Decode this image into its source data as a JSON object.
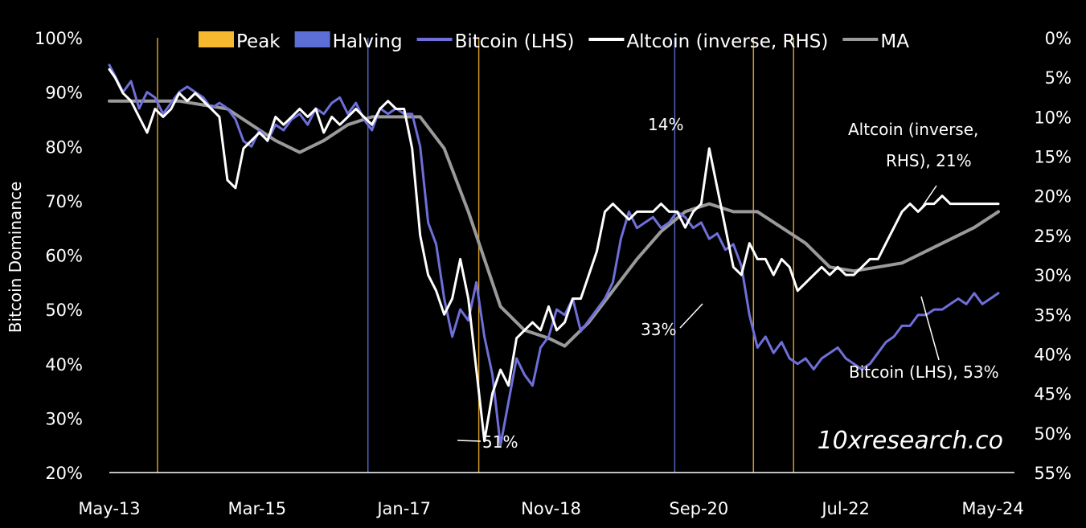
{
  "chart_data": {
    "type": "line",
    "ylabel": "Bitcoin Dominance",
    "watermark": "10xresearch.co",
    "x_ticks": [
      "May-13",
      "Mar-15",
      "Jan-17",
      "Nov-18",
      "Sep-20",
      "Jul-22",
      "May-24"
    ],
    "x_tick_dates": [
      2013.33,
      2015.17,
      2017.0,
      2018.83,
      2020.67,
      2022.5,
      2024.33
    ],
    "xlim": [
      2013.33,
      2024.6
    ],
    "y_left_ticks": [
      "100%",
      "90%",
      "80%",
      "70%",
      "60%",
      "50%",
      "40%",
      "30%",
      "20%"
    ],
    "ylim_left": [
      20,
      100
    ],
    "y_right_ticks": [
      "0%",
      "5%",
      "10%",
      "15%",
      "20%",
      "25%",
      "30%",
      "35%",
      "40%",
      "45%",
      "50%",
      "55%"
    ],
    "ylim_right": [
      0,
      55
    ],
    "legend_position": "top",
    "legend": [
      {
        "label": "Peak",
        "color": "#f5b82e",
        "kind": "box"
      },
      {
        "label": "Halving",
        "color": "#5b6fd6",
        "kind": "box"
      },
      {
        "label": "Bitcoin (LHS)",
        "color": "#6f6fd9",
        "kind": "line"
      },
      {
        "label": "Altcoin (inverse, RHS)",
        "color": "#ffffff",
        "kind": "line"
      },
      {
        "label": "MA",
        "color": "#9a9a9a",
        "kind": "line"
      }
    ],
    "peak_lines": [
      2013.93,
      2017.93,
      2021.35,
      2021.85
    ],
    "halving_lines": [
      2016.55,
      2020.37
    ],
    "series": [
      {
        "name": "Bitcoin (LHS)",
        "color": "#6f6fd9",
        "axis": "left",
        "x": [
          2013.33,
          2013.4,
          2013.5,
          2013.6,
          2013.7,
          2013.8,
          2013.9,
          2014.0,
          2014.1,
          2014.2,
          2014.3,
          2014.4,
          2014.5,
          2014.6,
          2014.7,
          2014.8,
          2014.9,
          2015.0,
          2015.1,
          2015.2,
          2015.3,
          2015.4,
          2015.5,
          2015.6,
          2015.7,
          2015.8,
          2015.9,
          2016.0,
          2016.1,
          2016.2,
          2016.3,
          2016.4,
          2016.5,
          2016.6,
          2016.7,
          2016.8,
          2016.9,
          2017.0,
          2017.1,
          2017.2,
          2017.3,
          2017.4,
          2017.5,
          2017.6,
          2017.7,
          2017.8,
          2017.9,
          2018.0,
          2018.1,
          2018.2,
          2018.3,
          2018.4,
          2018.5,
          2018.6,
          2018.7,
          2018.8,
          2018.9,
          2019.0,
          2019.1,
          2019.2,
          2019.3,
          2019.4,
          2019.5,
          2019.6,
          2019.7,
          2019.8,
          2019.9,
          2020.0,
          2020.1,
          2020.2,
          2020.3,
          2020.4,
          2020.5,
          2020.6,
          2020.7,
          2020.8,
          2020.9,
          2021.0,
          2021.1,
          2021.2,
          2021.3,
          2021.4,
          2021.5,
          2021.6,
          2021.7,
          2021.8,
          2021.9,
          2022.0,
          2022.1,
          2022.2,
          2022.3,
          2022.4,
          2022.5,
          2022.6,
          2022.7,
          2022.8,
          2022.9,
          2023.0,
          2023.1,
          2023.2,
          2023.3,
          2023.4,
          2023.5,
          2023.6,
          2023.7,
          2023.8,
          2023.9,
          2024.0,
          2024.1,
          2024.2,
          2024.3,
          2024.4
        ],
        "values": [
          95,
          93,
          90,
          92,
          87,
          90,
          89,
          86,
          88,
          90,
          91,
          90,
          89,
          87,
          88,
          87,
          85,
          81,
          80,
          83,
          81,
          84,
          83,
          85,
          86,
          84,
          87,
          86,
          88,
          89,
          86,
          88,
          85,
          83,
          87,
          86,
          87,
          86,
          86,
          80,
          66,
          62,
          52,
          45,
          50,
          48,
          55,
          45,
          38,
          25,
          33,
          41,
          38,
          36,
          43,
          45,
          50,
          49,
          52,
          46,
          48,
          50,
          52,
          55,
          63,
          68,
          65,
          66,
          67,
          65,
          66,
          68,
          67,
          65,
          66,
          63,
          64,
          61,
          62,
          58,
          49,
          43,
          45,
          42,
          44,
          41,
          40,
          41,
          39,
          41,
          42,
          43,
          41,
          40,
          39,
          40,
          42,
          44,
          45,
          47,
          47,
          49,
          49,
          50,
          50,
          51,
          52,
          51,
          53,
          51,
          52,
          53
        ]
      },
      {
        "name": "Altcoin (inverse, RHS)",
        "color": "#ffffff",
        "axis": "right",
        "x": [
          2013.33,
          2013.4,
          2013.5,
          2013.6,
          2013.7,
          2013.8,
          2013.9,
          2014.0,
          2014.1,
          2014.2,
          2014.3,
          2014.4,
          2014.5,
          2014.6,
          2014.7,
          2014.8,
          2014.9,
          2015.0,
          2015.1,
          2015.2,
          2015.3,
          2015.4,
          2015.5,
          2015.6,
          2015.7,
          2015.8,
          2015.9,
          2016.0,
          2016.1,
          2016.2,
          2016.3,
          2016.4,
          2016.5,
          2016.6,
          2016.7,
          2016.8,
          2016.9,
          2017.0,
          2017.1,
          2017.2,
          2017.3,
          2017.4,
          2017.5,
          2017.6,
          2017.7,
          2017.8,
          2017.9,
          2018.0,
          2018.1,
          2018.2,
          2018.3,
          2018.4,
          2018.5,
          2018.6,
          2018.7,
          2018.8,
          2018.9,
          2019.0,
          2019.1,
          2019.2,
          2019.3,
          2019.4,
          2019.5,
          2019.6,
          2019.7,
          2019.8,
          2019.9,
          2020.0,
          2020.1,
          2020.2,
          2020.3,
          2020.4,
          2020.5,
          2020.6,
          2020.7,
          2020.8,
          2020.9,
          2021.0,
          2021.1,
          2021.2,
          2021.3,
          2021.4,
          2021.5,
          2021.6,
          2021.7,
          2021.8,
          2021.9,
          2022.0,
          2022.1,
          2022.2,
          2022.3,
          2022.4,
          2022.5,
          2022.6,
          2022.7,
          2022.8,
          2022.9,
          2023.0,
          2023.1,
          2023.2,
          2023.3,
          2023.4,
          2023.5,
          2023.6,
          2023.7,
          2023.8,
          2023.9,
          2024.0,
          2024.1,
          2024.2,
          2024.3,
          2024.4
        ],
        "values": [
          4,
          5,
          7,
          8,
          10,
          12,
          9,
          10,
          9,
          7,
          8,
          7,
          8,
          9,
          10,
          18,
          19,
          14,
          13,
          12,
          13,
          10,
          11,
          10,
          9,
          10,
          9,
          12,
          10,
          11,
          10,
          9,
          10,
          11,
          9,
          8,
          9,
          9,
          14,
          25,
          30,
          32,
          35,
          33,
          28,
          33,
          42,
          51,
          45,
          42,
          44,
          38,
          37,
          36,
          37,
          34,
          37,
          36,
          33,
          33,
          30,
          27,
          22,
          21,
          22,
          23,
          22,
          22,
          22,
          21,
          22,
          22,
          24,
          22,
          21,
          14,
          19,
          24,
          29,
          30,
          26,
          28,
          28,
          30,
          28,
          29,
          32,
          31,
          30,
          29,
          30,
          29,
          30,
          30,
          29,
          28,
          28,
          26,
          24,
          22,
          21,
          22,
          21,
          21,
          20,
          21,
          21,
          21,
          21,
          21,
          21,
          21
        ]
      },
      {
        "name": "MA",
        "color": "#9a9a9a",
        "axis": "right",
        "x": [
          2013.33,
          2013.6,
          2013.9,
          2014.2,
          2014.5,
          2014.8,
          2015.1,
          2015.4,
          2015.7,
          2016.0,
          2016.3,
          2016.6,
          2016.9,
          2017.2,
          2017.5,
          2017.8,
          2018.0,
          2018.2,
          2018.5,
          2018.8,
          2019.0,
          2019.3,
          2019.6,
          2019.9,
          2020.2,
          2020.5,
          2020.8,
          2021.1,
          2021.4,
          2021.7,
          2022.0,
          2022.3,
          2022.6,
          2022.9,
          2023.2,
          2023.5,
          2023.8,
          2024.1,
          2024.4
        ],
        "values": [
          8,
          8,
          8,
          8,
          8.5,
          9,
          11,
          13,
          14.5,
          13,
          11,
          10,
          10,
          10,
          14,
          22,
          28,
          34,
          37,
          38,
          39,
          36,
          32,
          28,
          24.5,
          22,
          21,
          22,
          22,
          24,
          26,
          29,
          29.5,
          29,
          28.5,
          27,
          25.5,
          24,
          22
        ]
      }
    ],
    "annotations": [
      {
        "text": "51%",
        "x": 2017.95,
        "y_left": 25.3
      },
      {
        "text": "14%",
        "x": 2020.85,
        "y_right": 13.8
      },
      {
        "text": "33%",
        "x": 2021.35,
        "y_right": 33
      },
      {
        "text": "Altcoin (inverse,",
        "x": 2023.4,
        "y_right": 11
      },
      {
        "text": "RHS), 21%",
        "x": 2023.6,
        "y_right": 15.5
      },
      {
        "text": "Bitcoin (LHS), 53%",
        "x": 2023.3,
        "y_left": 41
      }
    ]
  }
}
